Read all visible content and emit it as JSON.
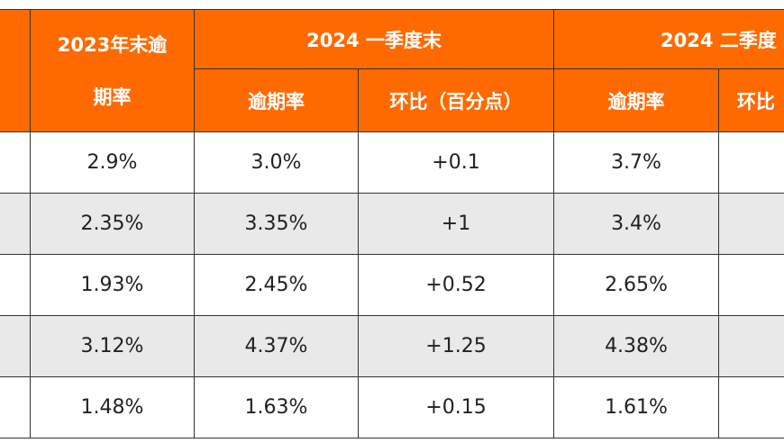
{
  "header": {
    "col_2023_line1": "2023年末逾",
    "col_2023_line2": "期率",
    "q1_group": "2024 一季度末",
    "q2_group": "2024 二季度",
    "q1_overdue_rate": "逾期率",
    "q1_qoq": "环比（百分点）",
    "q2_overdue_rate": "逾期率",
    "q2_qoq_partial": "环比"
  },
  "rows": [
    {
      "y2023": "2.9%",
      "q1_rate": "3.0%",
      "q1_qoq": "+0.1",
      "q2_rate": "3.7%"
    },
    {
      "y2023": "2.35%",
      "q1_rate": "3.35%",
      "q1_qoq": "+1",
      "q2_rate": "3.4%"
    },
    {
      "y2023": "1.93%",
      "q1_rate": "2.45%",
      "q1_qoq": "+0.52",
      "q2_rate": "2.65%"
    },
    {
      "y2023": "3.12%",
      "q1_rate": "4.37%",
      "q1_qoq": "+1.25",
      "q2_rate": "4.38%"
    },
    {
      "y2023": "1.48%",
      "q1_rate": "1.63%",
      "q1_qoq": "+0.15",
      "q2_rate": "1.61%"
    }
  ],
  "colors": {
    "header_bg": "#ff6a00",
    "header_text": "#ffffff",
    "alt_row_bg": "#e9e9e9"
  }
}
